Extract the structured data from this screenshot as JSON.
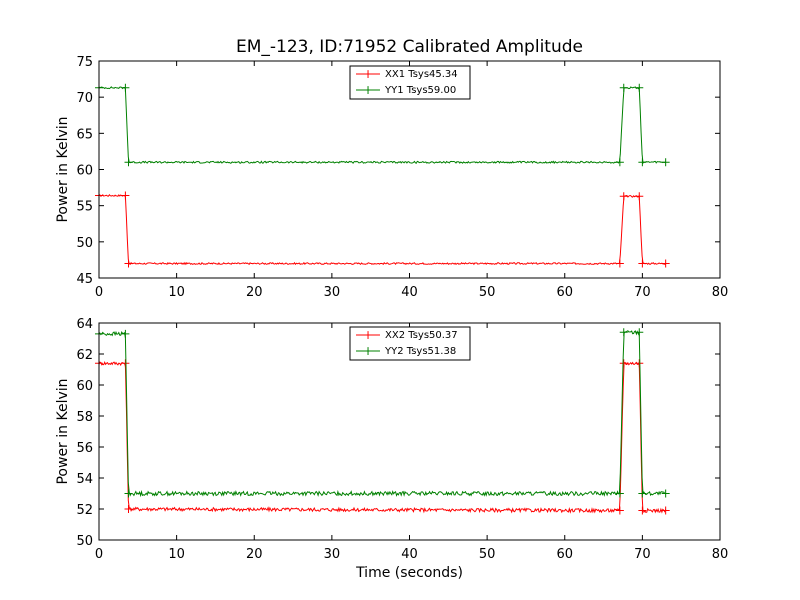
{
  "chart_data": [
    {
      "type": "line",
      "title": "EM_-123, ID:71952 Calibrated Amplitude",
      "xlabel": "",
      "ylabel": "Power in Kelvin",
      "xlim": [
        0,
        80
      ],
      "ylim": [
        45,
        75
      ],
      "xticks": [
        "0",
        "10",
        "20",
        "30",
        "40",
        "50",
        "60",
        "70",
        "80"
      ],
      "yticks": [
        "45",
        "50",
        "55",
        "60",
        "65",
        "70",
        "75"
      ],
      "grid": false,
      "legend_position": "top-center",
      "series": [
        {
          "name": "XX1 Tsys45.34",
          "color": "#ff0000",
          "x": [
            0,
            3.4,
            3.8,
            67.1,
            67.6,
            69.6,
            70.0,
            73
          ],
          "values": [
            56.4,
            56.4,
            47.0,
            47.0,
            56.3,
            56.3,
            47.0,
            47.0
          ]
        },
        {
          "name": "YY1 Tsys59.00",
          "color": "#008000",
          "x": [
            0,
            3.4,
            3.8,
            67.1,
            67.6,
            69.6,
            70.0,
            73
          ],
          "values": [
            71.3,
            71.3,
            61.0,
            61.0,
            71.3,
            71.3,
            61.0,
            61.0
          ]
        }
      ]
    },
    {
      "type": "line",
      "title": "",
      "xlabel": "Time (seconds)",
      "ylabel": "Power in Kelvin",
      "xlim": [
        0,
        80
      ],
      "ylim": [
        50,
        64
      ],
      "xticks": [
        "0",
        "10",
        "20",
        "30",
        "40",
        "50",
        "60",
        "70",
        "80"
      ],
      "yticks": [
        "50",
        "52",
        "54",
        "56",
        "58",
        "60",
        "62",
        "64"
      ],
      "grid": false,
      "legend_position": "top-center",
      "series": [
        {
          "name": "XX2 Tsys50.37",
          "color": "#ff0000",
          "x": [
            0,
            3.4,
            3.8,
            67.1,
            67.6,
            69.6,
            70.0,
            73
          ],
          "values": [
            61.4,
            61.4,
            52.0,
            51.9,
            61.4,
            61.4,
            51.9,
            51.9
          ]
        },
        {
          "name": "YY2 Tsys51.38",
          "color": "#008000",
          "x": [
            0,
            3.4,
            3.8,
            67.1,
            67.6,
            69.6,
            70.0,
            73
          ],
          "values": [
            63.3,
            63.3,
            53.0,
            53.0,
            63.4,
            63.4,
            53.0,
            53.0
          ]
        }
      ]
    }
  ]
}
